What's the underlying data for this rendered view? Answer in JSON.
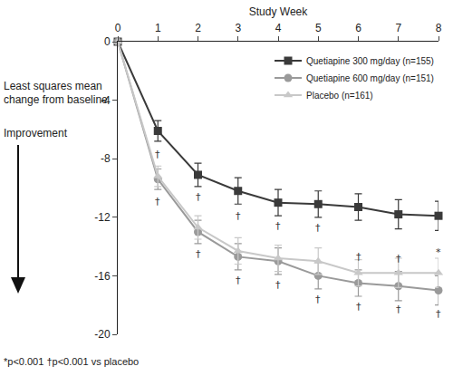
{
  "chart_data": {
    "type": "line",
    "xlabel": "Study Week",
    "ylabel": "Least squares mean change from baseline",
    "direction_label": "Improvement",
    "footnote": "*p<0.001 †p<0.001 vs placebo",
    "x": [
      0,
      1,
      2,
      3,
      4,
      5,
      6,
      7,
      8
    ],
    "xlim": [
      0,
      8
    ],
    "xticks": [
      0,
      1,
      2,
      3,
      4,
      5,
      6,
      7,
      8
    ],
    "ylim": [
      -20,
      0
    ],
    "yticks": [
      0,
      -4,
      -8,
      -12,
      -16,
      -20
    ],
    "grid": false,
    "legend": "upper right",
    "series": [
      {
        "name": "Quetiapine 300 mg/day (n=155)",
        "color": "#3a3a3a",
        "marker": "square",
        "values": [
          0,
          -6.1,
          -9.1,
          -10.2,
          -11.0,
          -11.1,
          -11.3,
          -11.8,
          -11.9
        ],
        "error": [
          0,
          0.7,
          0.8,
          0.9,
          0.9,
          0.9,
          0.9,
          1.0,
          1.0
        ]
      },
      {
        "name": "Quetiapine 600 mg/day (n=151)",
        "color": "#9a9a9a",
        "marker": "circle",
        "values": [
          0,
          -9.4,
          -13.0,
          -14.7,
          -15.0,
          -16.0,
          -16.5,
          -16.7,
          -17.0
        ],
        "error": [
          0,
          0.7,
          0.8,
          0.9,
          0.9,
          0.9,
          0.9,
          1.0,
          1.0
        ]
      },
      {
        "name": "Placebo (n=161)",
        "color": "#c8c8c8",
        "marker": "triangle-up",
        "values": [
          0,
          -9.2,
          -12.7,
          -14.3,
          -14.8,
          -15.0,
          -15.8,
          -15.8,
          -15.8
        ],
        "error": [
          0,
          0.7,
          0.8,
          0.9,
          0.9,
          0.9,
          0.9,
          1.0,
          1.0
        ]
      }
    ],
    "annotations": [
      {
        "x": 1,
        "y": -7.7,
        "text": "†"
      },
      {
        "x": 1,
        "y": -10.9,
        "text": "†"
      },
      {
        "x": 2,
        "y": -10.6,
        "text": "†"
      },
      {
        "x": 2,
        "y": -14.5,
        "text": "†"
      },
      {
        "x": 3,
        "y": -11.9,
        "text": "†"
      },
      {
        "x": 3,
        "y": -16.3,
        "text": "†"
      },
      {
        "x": 4,
        "y": -12.6,
        "text": "†"
      },
      {
        "x": 4,
        "y": -16.6,
        "text": "†"
      },
      {
        "x": 5,
        "y": -12.7,
        "text": "†"
      },
      {
        "x": 5,
        "y": -17.6,
        "text": "†"
      },
      {
        "x": 6,
        "y": -14.7,
        "text": "†"
      },
      {
        "x": 6,
        "y": -18.1,
        "text": "†"
      },
      {
        "x": 7,
        "y": -14.8,
        "text": "†"
      },
      {
        "x": 7,
        "y": -18.3,
        "text": "†"
      },
      {
        "x": 8,
        "y": -14.4,
        "text": "*"
      },
      {
        "x": 8,
        "y": -18.6,
        "text": "†"
      }
    ]
  }
}
